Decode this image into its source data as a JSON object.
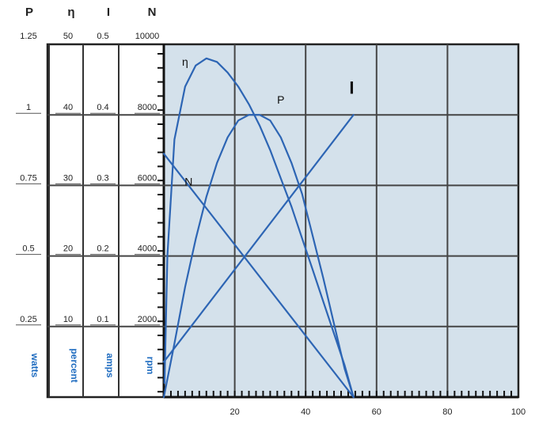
{
  "chart_data": {
    "type": "line",
    "title": "",
    "xlabel": "",
    "x_ticks": [
      "20",
      "40",
      "60",
      "80",
      "100"
    ],
    "xlim": [
      0,
      100
    ],
    "axes": [
      {
        "name": "P",
        "ticks": [
          "1.25",
          "1",
          "0.75",
          "0.5",
          "0.25"
        ],
        "unit": "watts",
        "ylim": [
          0,
          1.25
        ]
      },
      {
        "name": "η",
        "ticks": [
          "50",
          "40",
          "30",
          "20",
          "10"
        ],
        "unit": "percent",
        "ylim": [
          0,
          50
        ]
      },
      {
        "name": "I",
        "ticks": [
          "0.5",
          "0.4",
          "0.3",
          "0.2",
          "0.1"
        ],
        "unit": "amps",
        "ylim": [
          0,
          0.5
        ]
      },
      {
        "name": "N",
        "ticks": [
          "10000",
          "8000",
          "6000",
          "4000",
          "2000"
        ],
        "unit": "rpm",
        "ylim": [
          0,
          10000
        ]
      }
    ],
    "series": [
      {
        "name": "η",
        "axis": "η",
        "x": [
          0.2,
          1,
          3,
          6,
          9,
          12,
          15,
          18,
          21,
          24,
          27,
          30,
          33,
          36,
          39,
          42,
          45,
          48,
          51,
          53.5
        ],
        "y": [
          2,
          20,
          36.5,
          44,
          47,
          48,
          47.5,
          46,
          44,
          41.5,
          38.5,
          35,
          31,
          27,
          22.5,
          18,
          13.5,
          9,
          4.5,
          0
        ]
      },
      {
        "name": "P",
        "axis": "P",
        "x": [
          0,
          3,
          6,
          9,
          12,
          15,
          18,
          21,
          24,
          27,
          30,
          33,
          36,
          39,
          42,
          45,
          48,
          51,
          53.5
        ],
        "y": [
          0,
          0.19,
          0.39,
          0.56,
          0.71,
          0.83,
          0.92,
          0.98,
          1.0,
          1.0,
          0.98,
          0.92,
          0.83,
          0.72,
          0.57,
          0.42,
          0.26,
          0.1,
          0
        ]
      },
      {
        "name": "I",
        "axis": "I",
        "x": [
          0,
          53.5
        ],
        "y": [
          0.05,
          0.4
        ]
      },
      {
        "name": "N",
        "axis": "N",
        "x": [
          0,
          53.5
        ],
        "y": [
          6900,
          0
        ]
      }
    ],
    "annotations": [
      "η",
      "P",
      "I",
      "N"
    ],
    "grid": true
  },
  "colors": {
    "plot_bg": "#d4e1eb",
    "curve": "#2d65b4",
    "grid": "#444444",
    "unit_text": "#1f6cc0"
  }
}
